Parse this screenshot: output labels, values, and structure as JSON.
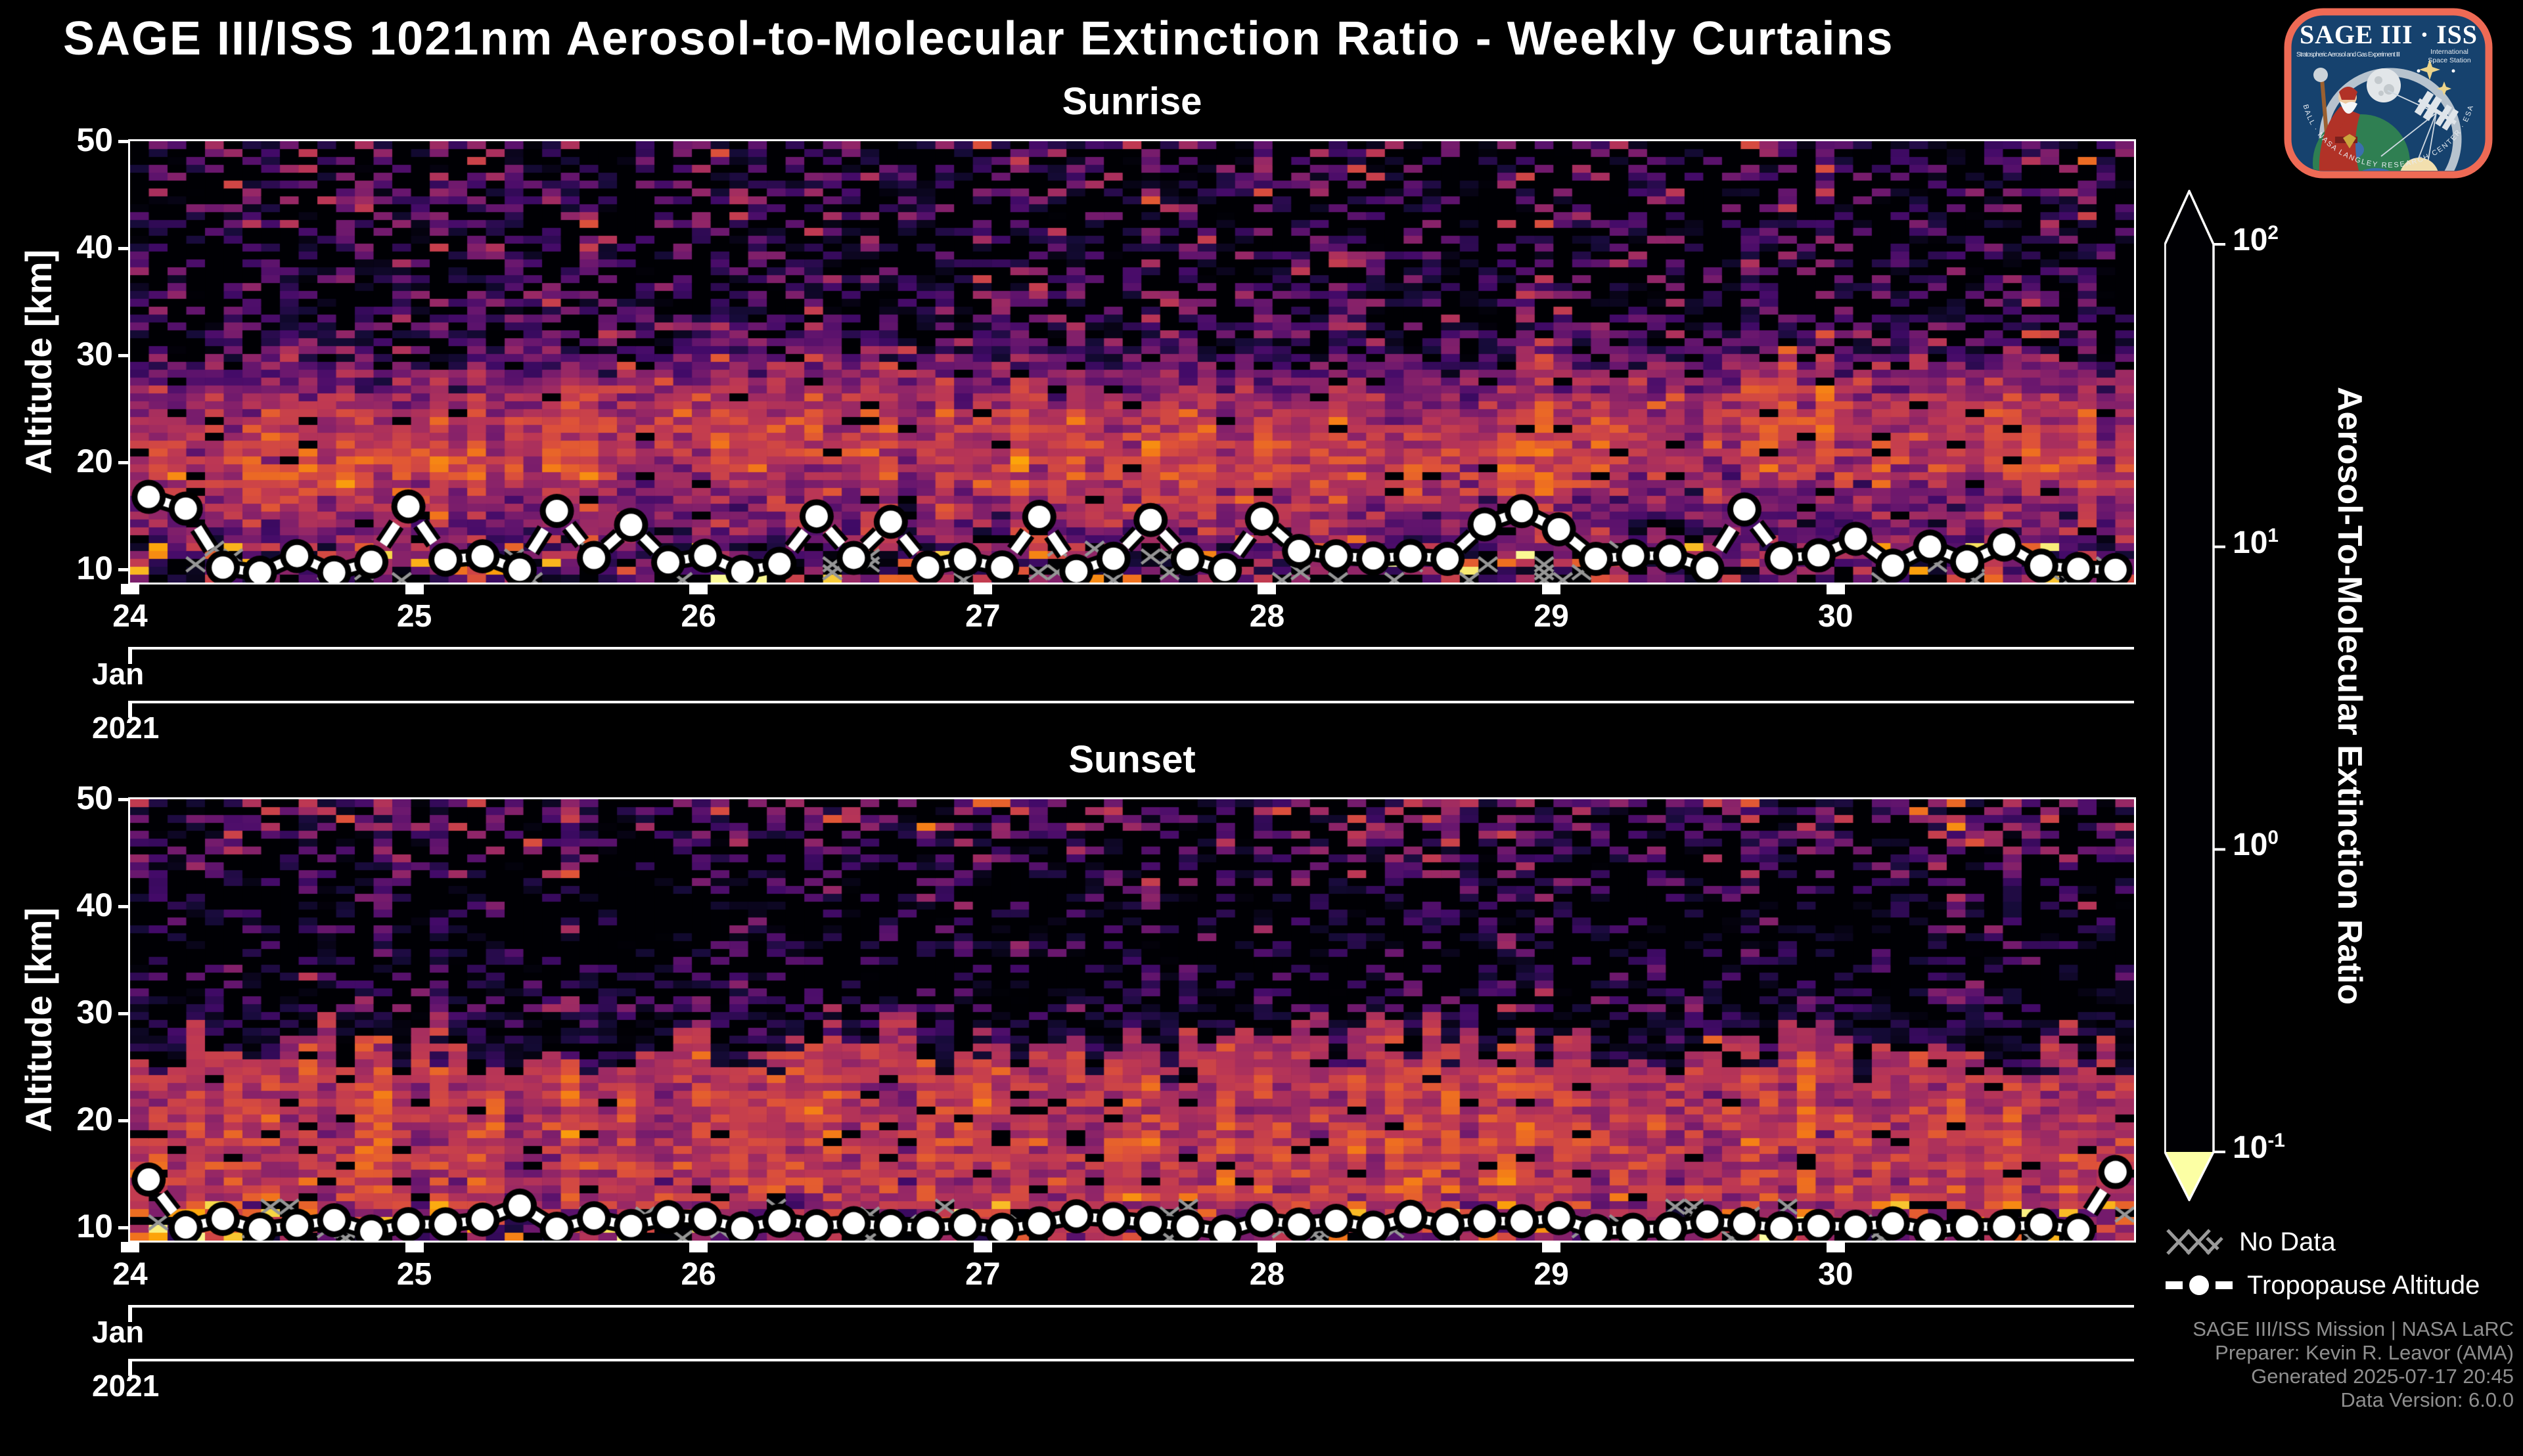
{
  "page": {
    "title": "SAGE III/ISS 1021nm Aerosol-to-Molecular Extinction Ratio - Weekly Curtains",
    "background": "#000000",
    "text_color": "#ffffff"
  },
  "logo": {
    "title": "SAGE III · ISS",
    "subtitle_left": "Stratospheric Aerosol and Gas Experiment III",
    "intl_1": "International",
    "intl_2": "Space Station",
    "ring_text": "BALL  ·  NASA LANGLEY RESEARCH CENTER  ·  ESA",
    "border_color": "#ee6a55",
    "bg_color": "#16426e"
  },
  "panels": [
    {
      "id": "sunrise",
      "title": "Sunrise"
    },
    {
      "id": "sunset",
      "title": "Sunset"
    }
  ],
  "axes": {
    "ylabel": "Altitude [km]",
    "y_ticks": [
      50,
      40,
      30,
      20,
      10
    ],
    "y_min": 8.8,
    "y_max": 50,
    "x_ticks": [
      24,
      25,
      26,
      27,
      28,
      29,
      30
    ],
    "x_min": 24,
    "x_max": 31.05,
    "month_label": "Jan",
    "year_label": "2021"
  },
  "colorbar": {
    "title": "Aerosol-To-Molecular Extinction Ratio",
    "base": "10",
    "tick_exponents": [
      2,
      1,
      0,
      -1
    ],
    "scale": "log10",
    "vmin": 0.1,
    "vmax": 100,
    "arrow_caps": "both",
    "colormap_stops": [
      [
        0.0,
        "#000004"
      ],
      [
        0.1,
        "#160b39"
      ],
      [
        0.2,
        "#420a68"
      ],
      [
        0.3,
        "#6a176e"
      ],
      [
        0.4,
        "#932667"
      ],
      [
        0.5,
        "#bc3754"
      ],
      [
        0.6,
        "#dd513a"
      ],
      [
        0.7,
        "#f37819"
      ],
      [
        0.8,
        "#fca50a"
      ],
      [
        0.9,
        "#f6d746"
      ],
      [
        1.0,
        "#fcffa4"
      ]
    ]
  },
  "legend": {
    "no_data": "No Data",
    "tropopause": "Tropopause Altitude",
    "no_data_color": "#9a9a9a",
    "tropopause_color": "#ffffff"
  },
  "attribution": [
    "SAGE III/ISS Mission | NASA LaRC",
    "Preparer: Kevin R. Leavor (AMA)",
    "Generated 2025-07-17 20:45",
    "Data Version: 6.0.0"
  ],
  "chart_data": [
    {
      "type": "heatmap",
      "title": "Sunrise",
      "x_range_days": [
        24,
        31.05
      ],
      "x_unit": "day of Jan 2021",
      "alt_min_km": 8.8,
      "alt_max_km": 50,
      "n_cols": 107,
      "n_rows": 56,
      "seed": 20210124,
      "wobble_km": 1.3,
      "wobble_phase": 0.8,
      "p_hot_below_12km": 0.07,
      "profile_log10_ratio_by_alt": [
        [
          8.8,
          -0.15
        ],
        [
          10.5,
          -0.2
        ],
        [
          12,
          -0.1
        ],
        [
          14,
          0.0
        ],
        [
          16,
          0.2
        ],
        [
          18,
          0.42
        ],
        [
          20,
          0.58
        ],
        [
          22,
          0.55
        ],
        [
          24,
          0.45
        ],
        [
          26,
          0.28
        ],
        [
          28,
          0.05
        ],
        [
          30,
          -0.25
        ],
        [
          33,
          -0.5
        ],
        [
          38,
          -0.62
        ],
        [
          44,
          -0.6
        ],
        [
          50,
          -0.45
        ]
      ],
      "sigma_log10_by_alt": [
        [
          8.8,
          0.6
        ],
        [
          12,
          0.45
        ],
        [
          14,
          0.32
        ],
        [
          24,
          0.22
        ],
        [
          28,
          0.3
        ],
        [
          32,
          0.45
        ],
        [
          50,
          0.55
        ]
      ],
      "missing_prob_by_alt": [
        [
          8.8,
          0.3
        ],
        [
          10.5,
          0.18
        ],
        [
          12,
          0.07
        ],
        [
          13,
          0.04
        ],
        [
          27,
          0.02
        ],
        [
          30,
          0.12
        ],
        [
          34,
          0.3
        ],
        [
          40,
          0.4
        ],
        [
          46,
          0.38
        ],
        [
          50,
          0.32
        ]
      ],
      "tropopause": {
        "n_points": 54,
        "base_km": 9.7,
        "jitter_km": 1.7,
        "spike_prob": 0.17,
        "spike_km": 3.6,
        "max_km": 17.2,
        "overrides": {
          "0": 16.8,
          "1": 15.7,
          "7": 15.9
        }
      }
    },
    {
      "type": "heatmap",
      "title": "Sunset",
      "x_range_days": [
        24,
        31.05
      ],
      "x_unit": "day of Jan 2021",
      "alt_min_km": 8.8,
      "alt_max_km": 50,
      "n_cols": 107,
      "n_rows": 56,
      "seed": 20210125,
      "wobble_km": 1.0,
      "wobble_phase": 2.1,
      "p_hot_below_12km": 0.09,
      "profile_log10_ratio_by_alt": [
        [
          8.8,
          0.1
        ],
        [
          10,
          0.3
        ],
        [
          12,
          0.42
        ],
        [
          16,
          0.5
        ],
        [
          20,
          0.5
        ],
        [
          24,
          0.45
        ],
        [
          26,
          0.35
        ],
        [
          28,
          0.1
        ],
        [
          30,
          -0.4
        ],
        [
          32,
          -0.75
        ],
        [
          36,
          -0.85
        ],
        [
          40,
          -0.72
        ],
        [
          44,
          -0.55
        ],
        [
          47,
          -0.3
        ],
        [
          50,
          -0.1
        ]
      ],
      "sigma_log10_by_alt": [
        [
          8.8,
          0.5
        ],
        [
          11,
          0.4
        ],
        [
          14,
          0.25
        ],
        [
          24,
          0.22
        ],
        [
          28,
          0.35
        ],
        [
          34,
          0.4
        ],
        [
          44,
          0.5
        ],
        [
          50,
          0.55
        ]
      ],
      "missing_prob_by_alt": [
        [
          8.8,
          0.35
        ],
        [
          10,
          0.22
        ],
        [
          12,
          0.08
        ],
        [
          14,
          0.05
        ],
        [
          26,
          0.04
        ],
        [
          29,
          0.15
        ],
        [
          32,
          0.4
        ],
        [
          36,
          0.5
        ],
        [
          42,
          0.45
        ],
        [
          47,
          0.35
        ],
        [
          50,
          0.28
        ]
      ],
      "drip": {
        "alt_top": 30.5,
        "alt_bottom": 23.5,
        "boundary_min": 24.0,
        "boundary_max": 30.5
      },
      "tropopause": {
        "n_points": 54,
        "base_km": 9.6,
        "jitter_km": 1.5,
        "spike_prob": 0.07,
        "spike_km": 2.2,
        "max_km": 15.6,
        "overrides": {
          "53": 15.2
        }
      }
    }
  ]
}
